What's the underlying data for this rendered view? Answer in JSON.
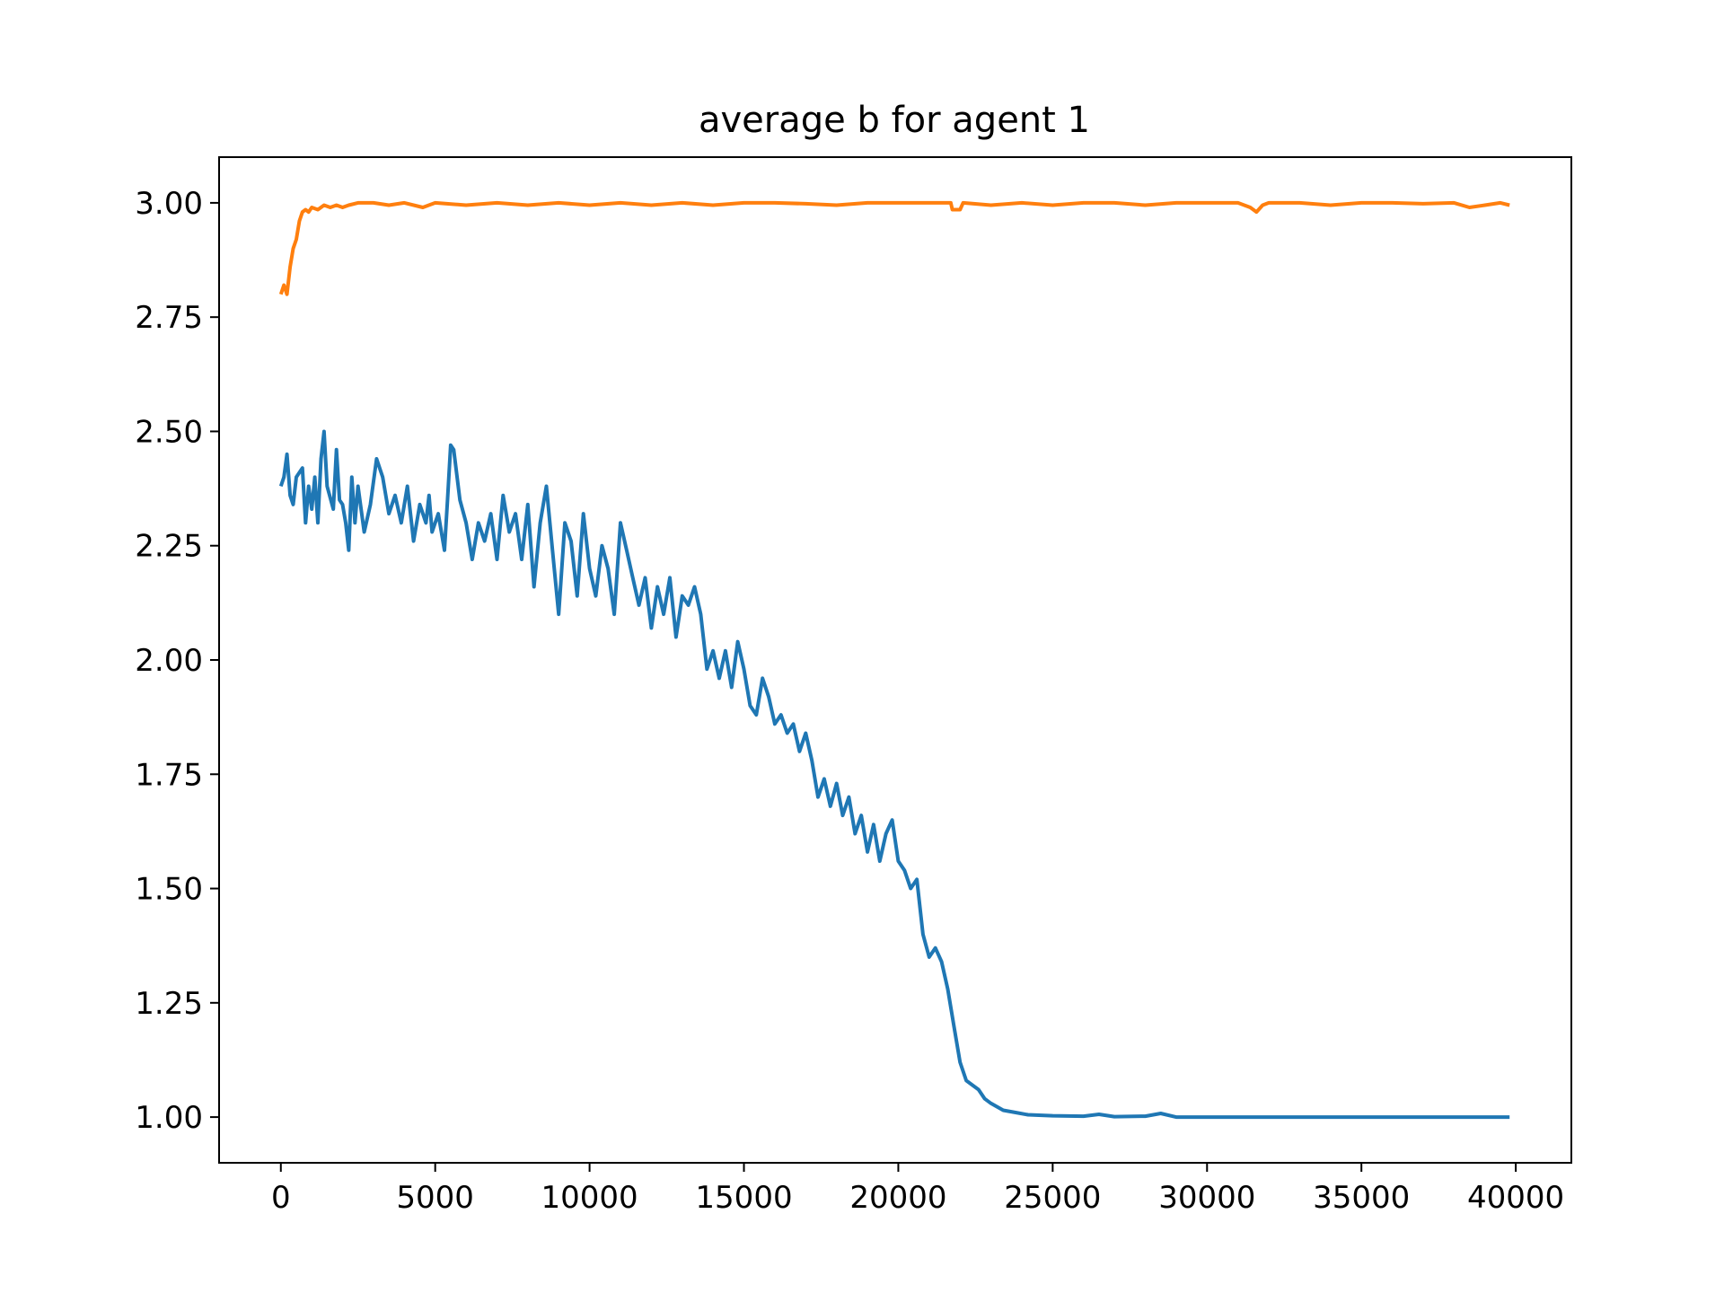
{
  "chart_data": {
    "type": "line",
    "title": "average b for agent 1",
    "xlabel": "",
    "ylabel": "",
    "xlim": [
      -2000,
      41800
    ],
    "ylim": [
      0.9,
      3.1
    ],
    "grid": false,
    "legend": "none",
    "x_ticks": [
      {
        "value": 0,
        "label": "0"
      },
      {
        "value": 5000,
        "label": "5000"
      },
      {
        "value": 10000,
        "label": "10000"
      },
      {
        "value": 15000,
        "label": "15000"
      },
      {
        "value": 20000,
        "label": "20000"
      },
      {
        "value": 25000,
        "label": "25000"
      },
      {
        "value": 30000,
        "label": "30000"
      },
      {
        "value": 35000,
        "label": "35000"
      },
      {
        "value": 40000,
        "label": "40000"
      }
    ],
    "y_ticks": [
      {
        "value": 1.0,
        "label": "1.00"
      },
      {
        "value": 1.25,
        "label": "1.25"
      },
      {
        "value": 1.5,
        "label": "1.50"
      },
      {
        "value": 1.75,
        "label": "1.75"
      },
      {
        "value": 2.0,
        "label": "2.00"
      },
      {
        "value": 2.25,
        "label": "2.25"
      },
      {
        "value": 2.5,
        "label": "2.50"
      },
      {
        "value": 2.75,
        "label": "2.75"
      },
      {
        "value": 3.0,
        "label": "3.00"
      }
    ],
    "series": [
      {
        "color": "#1f77b4",
        "points": [
          [
            0,
            2.38
          ],
          [
            100,
            2.4
          ],
          [
            200,
            2.45
          ],
          [
            300,
            2.36
          ],
          [
            400,
            2.34
          ],
          [
            500,
            2.4
          ],
          [
            700,
            2.42
          ],
          [
            800,
            2.3
          ],
          [
            900,
            2.38
          ],
          [
            1000,
            2.33
          ],
          [
            1100,
            2.4
          ],
          [
            1200,
            2.3
          ],
          [
            1300,
            2.44
          ],
          [
            1400,
            2.5
          ],
          [
            1500,
            2.38
          ],
          [
            1700,
            2.33
          ],
          [
            1800,
            2.46
          ],
          [
            1900,
            2.35
          ],
          [
            2000,
            2.34
          ],
          [
            2100,
            2.3
          ],
          [
            2200,
            2.24
          ],
          [
            2300,
            2.4
          ],
          [
            2400,
            2.3
          ],
          [
            2500,
            2.38
          ],
          [
            2700,
            2.28
          ],
          [
            2900,
            2.34
          ],
          [
            3100,
            2.44
          ],
          [
            3300,
            2.4
          ],
          [
            3500,
            2.32
          ],
          [
            3700,
            2.36
          ],
          [
            3900,
            2.3
          ],
          [
            4100,
            2.38
          ],
          [
            4300,
            2.26
          ],
          [
            4500,
            2.34
          ],
          [
            4700,
            2.3
          ],
          [
            4800,
            2.36
          ],
          [
            4900,
            2.28
          ],
          [
            5100,
            2.32
          ],
          [
            5300,
            2.24
          ],
          [
            5400,
            2.35
          ],
          [
            5500,
            2.47
          ],
          [
            5600,
            2.46
          ],
          [
            5800,
            2.35
          ],
          [
            6000,
            2.3
          ],
          [
            6200,
            2.22
          ],
          [
            6400,
            2.3
          ],
          [
            6600,
            2.26
          ],
          [
            6800,
            2.32
          ],
          [
            7000,
            2.22
          ],
          [
            7200,
            2.36
          ],
          [
            7400,
            2.28
          ],
          [
            7600,
            2.32
          ],
          [
            7800,
            2.22
          ],
          [
            8000,
            2.34
          ],
          [
            8200,
            2.16
          ],
          [
            8400,
            2.3
          ],
          [
            8600,
            2.38
          ],
          [
            8800,
            2.24
          ],
          [
            9000,
            2.1
          ],
          [
            9200,
            2.3
          ],
          [
            9400,
            2.26
          ],
          [
            9600,
            2.14
          ],
          [
            9800,
            2.32
          ],
          [
            10000,
            2.2
          ],
          [
            10200,
            2.14
          ],
          [
            10400,
            2.25
          ],
          [
            10600,
            2.2
          ],
          [
            10800,
            2.1
          ],
          [
            11000,
            2.3
          ],
          [
            11200,
            2.24
          ],
          [
            11400,
            2.18
          ],
          [
            11600,
            2.12
          ],
          [
            11800,
            2.18
          ],
          [
            12000,
            2.07
          ],
          [
            12200,
            2.16
          ],
          [
            12400,
            2.1
          ],
          [
            12600,
            2.18
          ],
          [
            12800,
            2.05
          ],
          [
            13000,
            2.14
          ],
          [
            13200,
            2.12
          ],
          [
            13400,
            2.16
          ],
          [
            13600,
            2.1
          ],
          [
            13800,
            1.98
          ],
          [
            14000,
            2.02
          ],
          [
            14200,
            1.96
          ],
          [
            14400,
            2.02
          ],
          [
            14600,
            1.94
          ],
          [
            14800,
            2.04
          ],
          [
            15000,
            1.98
          ],
          [
            15200,
            1.9
          ],
          [
            15400,
            1.88
          ],
          [
            15600,
            1.96
          ],
          [
            15800,
            1.92
          ],
          [
            16000,
            1.86
          ],
          [
            16200,
            1.88
          ],
          [
            16400,
            1.84
          ],
          [
            16600,
            1.86
          ],
          [
            16800,
            1.8
          ],
          [
            17000,
            1.84
          ],
          [
            17200,
            1.78
          ],
          [
            17400,
            1.7
          ],
          [
            17600,
            1.74
          ],
          [
            17800,
            1.68
          ],
          [
            18000,
            1.73
          ],
          [
            18200,
            1.66
          ],
          [
            18400,
            1.7
          ],
          [
            18600,
            1.62
          ],
          [
            18800,
            1.66
          ],
          [
            19000,
            1.58
          ],
          [
            19200,
            1.64
          ],
          [
            19400,
            1.56
          ],
          [
            19600,
            1.62
          ],
          [
            19800,
            1.65
          ],
          [
            20000,
            1.56
          ],
          [
            20200,
            1.54
          ],
          [
            20400,
            1.5
          ],
          [
            20600,
            1.52
          ],
          [
            20800,
            1.4
          ],
          [
            21000,
            1.35
          ],
          [
            21200,
            1.37
          ],
          [
            21400,
            1.34
          ],
          [
            21600,
            1.28
          ],
          [
            21800,
            1.2
          ],
          [
            22000,
            1.12
          ],
          [
            22200,
            1.08
          ],
          [
            22400,
            1.07
          ],
          [
            22600,
            1.06
          ],
          [
            22800,
            1.04
          ],
          [
            23000,
            1.03
          ],
          [
            23400,
            1.015
          ],
          [
            23800,
            1.01
          ],
          [
            24200,
            1.005
          ],
          [
            25000,
            1.003
          ],
          [
            26000,
            1.002
          ],
          [
            26500,
            1.006
          ],
          [
            27000,
            1.001
          ],
          [
            28000,
            1.002
          ],
          [
            28500,
            1.008
          ],
          [
            29000,
            1.0
          ],
          [
            32000,
            1.0
          ],
          [
            36000,
            1.0
          ],
          [
            39800,
            1.0
          ]
        ]
      },
      {
        "color": "#ff7f0e",
        "points": [
          [
            0,
            2.8
          ],
          [
            100,
            2.82
          ],
          [
            200,
            2.8
          ],
          [
            300,
            2.86
          ],
          [
            400,
            2.9
          ],
          [
            500,
            2.92
          ],
          [
            600,
            2.96
          ],
          [
            700,
            2.98
          ],
          [
            800,
            2.985
          ],
          [
            900,
            2.98
          ],
          [
            1000,
            2.99
          ],
          [
            1200,
            2.985
          ],
          [
            1400,
            2.995
          ],
          [
            1600,
            2.99
          ],
          [
            1800,
            2.995
          ],
          [
            2000,
            2.99
          ],
          [
            2200,
            2.995
          ],
          [
            2500,
            3.0
          ],
          [
            3000,
            3.0
          ],
          [
            3500,
            2.995
          ],
          [
            4000,
            3.0
          ],
          [
            4600,
            2.99
          ],
          [
            5000,
            3.0
          ],
          [
            6000,
            2.995
          ],
          [
            7000,
            3.0
          ],
          [
            8000,
            2.995
          ],
          [
            9000,
            3.0
          ],
          [
            10000,
            2.995
          ],
          [
            11000,
            3.0
          ],
          [
            12000,
            2.995
          ],
          [
            13000,
            3.0
          ],
          [
            14000,
            2.995
          ],
          [
            15000,
            3.0
          ],
          [
            16000,
            3.0
          ],
          [
            17000,
            2.998
          ],
          [
            18000,
            2.995
          ],
          [
            19000,
            3.0
          ],
          [
            20000,
            3.0
          ],
          [
            21000,
            3.0
          ],
          [
            21700,
            3.0
          ],
          [
            21750,
            2.985
          ],
          [
            22000,
            2.985
          ],
          [
            22100,
            3.0
          ],
          [
            23000,
            2.995
          ],
          [
            24000,
            3.0
          ],
          [
            25000,
            2.995
          ],
          [
            26000,
            3.0
          ],
          [
            27000,
            3.0
          ],
          [
            28000,
            2.995
          ],
          [
            29000,
            3.0
          ],
          [
            30000,
            3.0
          ],
          [
            31000,
            3.0
          ],
          [
            31400,
            2.99
          ],
          [
            31600,
            2.98
          ],
          [
            31800,
            2.995
          ],
          [
            32000,
            3.0
          ],
          [
            33000,
            3.0
          ],
          [
            34000,
            2.995
          ],
          [
            35000,
            3.0
          ],
          [
            36000,
            3.0
          ],
          [
            37000,
            2.998
          ],
          [
            38000,
            3.0
          ],
          [
            38500,
            2.99
          ],
          [
            39000,
            2.995
          ],
          [
            39500,
            3.0
          ],
          [
            39800,
            2.995
          ]
        ]
      }
    ]
  }
}
